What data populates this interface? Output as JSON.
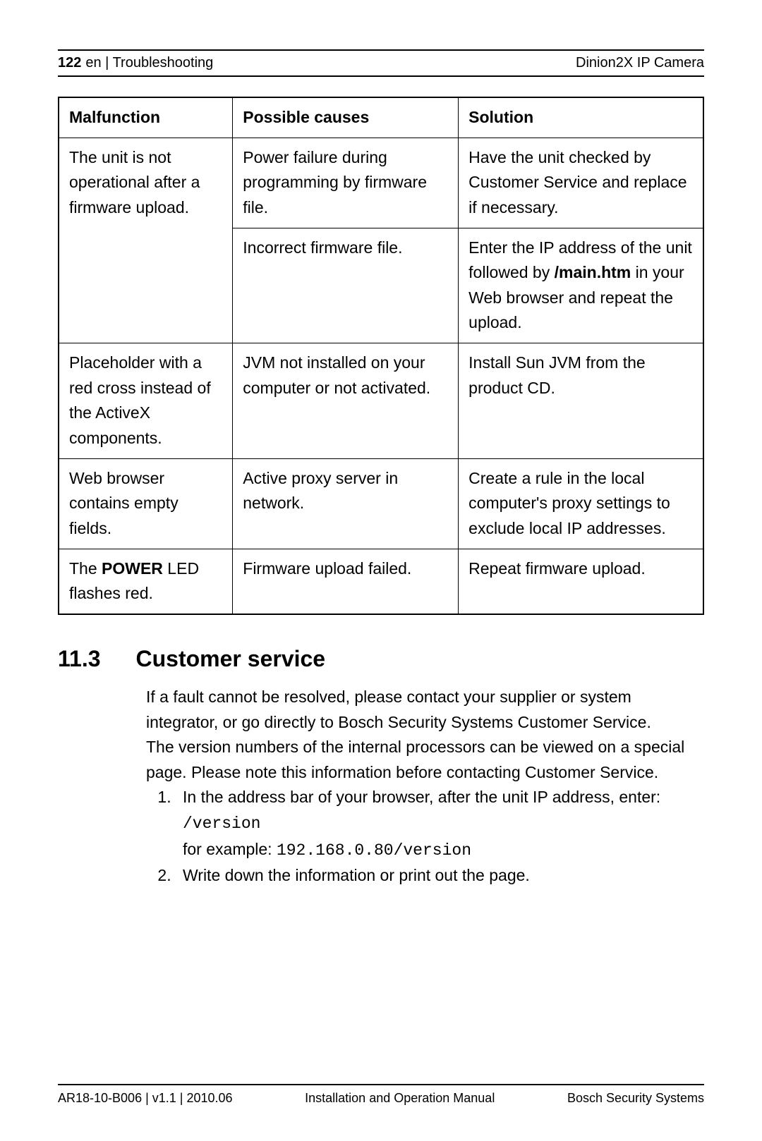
{
  "header": {
    "page_number": "122",
    "lang_section": "en | Troubleshooting",
    "product": "Dinion2X IP Camera"
  },
  "table": {
    "columns": [
      "Malfunction",
      "Possible causes",
      "Solution"
    ],
    "rows": [
      {
        "malfunction": "The unit is not operational after a firmware upload.",
        "cause": "Power failure during programming by firmware file.",
        "solution_plain": "Have the unit checked by Customer Service and replace if necessary.",
        "rowspan_malfunction": 2
      },
      {
        "malfunction": "",
        "cause": "Incorrect firmware file.",
        "solution_pre": "Enter the IP address of the unit followed by ",
        "solution_bold": "/main.htm",
        "solution_post": " in your Web browser and repeat the upload."
      },
      {
        "malfunction": "Placeholder with a red cross instead of the ActiveX components.",
        "cause": "JVM not installed on your computer or not activated.",
        "solution_plain": "Install Sun JVM from the product CD."
      },
      {
        "malfunction": "Web browser contains empty fields.",
        "cause": "Active proxy server in network.",
        "solution_plain": "Create a rule in the local computer's proxy settings to exclude local IP addresses."
      },
      {
        "malfunction_pre": "The ",
        "malfunction_bold": "POWER",
        "malfunction_post": " LED flashes red.",
        "cause": "Firmware upload failed.",
        "solution_plain": "Repeat firmware upload."
      }
    ]
  },
  "section": {
    "number": "11.3",
    "title": "Customer service",
    "para1": "If a fault cannot be resolved, please contact your supplier or system integrator, or go directly to Bosch Security Systems Customer Service.",
    "para2": "The version numbers of the internal processors can be viewed on a special page. Please note this information before contacting Customer Service.",
    "list": [
      {
        "text_pre": "In the address bar of your browser, after the unit IP address, enter: ",
        "mono1": "/version",
        "text_mid": "for example: ",
        "mono2": "192.168.0.80/version"
      },
      {
        "text_plain": "Write down the information or print out the page."
      }
    ]
  },
  "footer": {
    "left": "AR18-10-B006 | v1.1 | 2010.06",
    "center": "Installation and Operation Manual",
    "right": "Bosch Security Systems"
  }
}
